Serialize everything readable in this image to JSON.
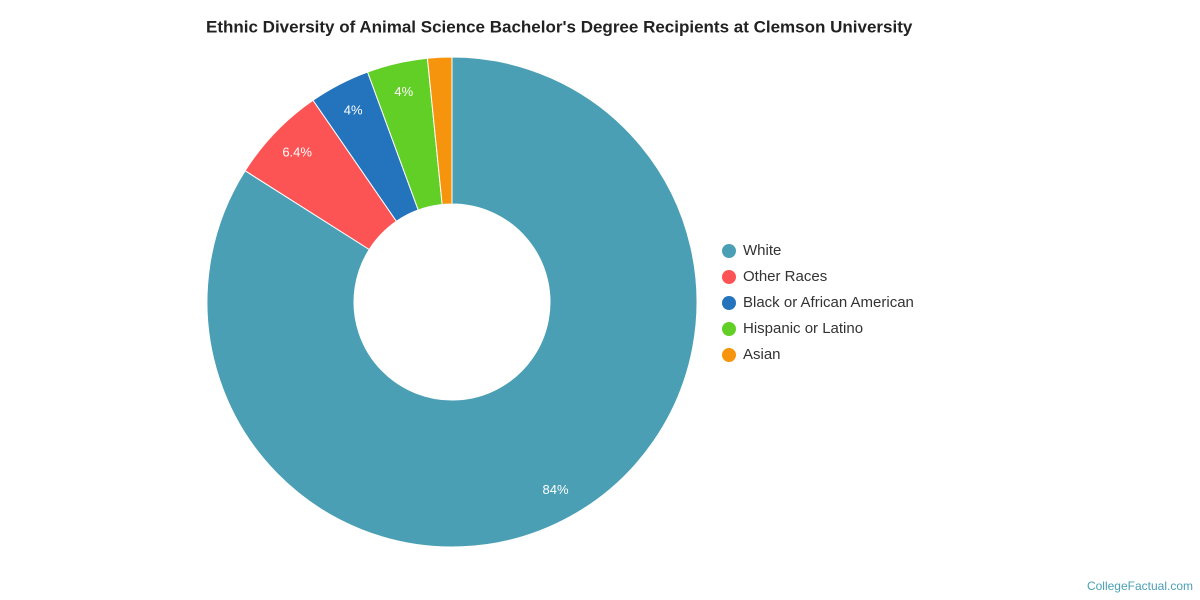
{
  "chart_data": {
    "type": "donut",
    "title": "Ethnic Diversity of Animal Science Bachelor's Degree Recipients at Clemson University",
    "categories": [
      "White",
      "Other Races",
      "Black or African American",
      "Hispanic or Latino",
      "Asian"
    ],
    "values": [
      84,
      6.4,
      4,
      4,
      1.6
    ],
    "value_labels": [
      "84%",
      "6.4%",
      "4%",
      "4%",
      null
    ],
    "colors": [
      "#4a9fb5",
      "#fc5454",
      "#2374bc",
      "#62cf27",
      "#f7940d"
    ],
    "legend": "right",
    "source": "CollegeFactual.com"
  }
}
